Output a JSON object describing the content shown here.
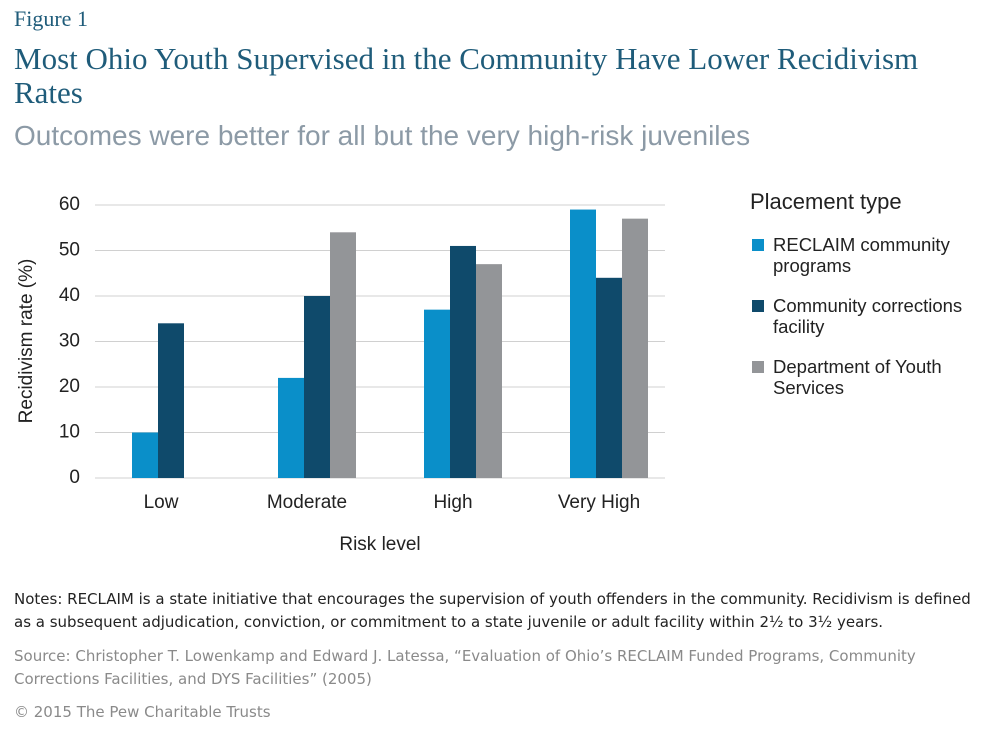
{
  "figure_label": "Figure 1",
  "chart_data": {
    "type": "bar",
    "title": "Most Ohio Youth Supervised in the Community Have Lower Recidivism Rates",
    "subtitle": "Outcomes were better for all but the very high-risk juveniles",
    "x_label": "Risk level",
    "y_label": "Recidivism rate (%)",
    "categories": [
      "Low",
      "Moderate",
      "High",
      "Very High"
    ],
    "series": [
      {
        "name": "RECLAIM community programs",
        "color": "#0a8fc9",
        "values": [
          10,
          22,
          37,
          59
        ]
      },
      {
        "name": "Community corrections facility",
        "color": "#0f4a6b",
        "values": [
          34,
          40,
          51,
          44
        ]
      },
      {
        "name": "Department of Youth Services",
        "color": "#939598",
        "values": [
          null,
          54,
          47,
          57
        ]
      }
    ],
    "ylim": [
      0,
      60
    ],
    "yticks": [
      0,
      10,
      20,
      30,
      40,
      50,
      60
    ],
    "grid": true,
    "legend_title": "Placement type",
    "legend_position": "right"
  },
  "notes": "Notes: RECLAIM is a state initiative that encourages the supervision of youth offenders in the community. Recidivism is defined as a subsequent adjudication, conviction, or commitment to a state juvenile or adult facility within 2½ to 3½ years.",
  "source": "Source: Christopher T. Lowenkamp and Edward J. Latessa, “Evaluation of Ohio’s RECLAIM Funded Programs, Community Corrections Facilities, and DYS Facilities” (2005)",
  "copyright": "© 2015 The Pew Charitable Trusts"
}
